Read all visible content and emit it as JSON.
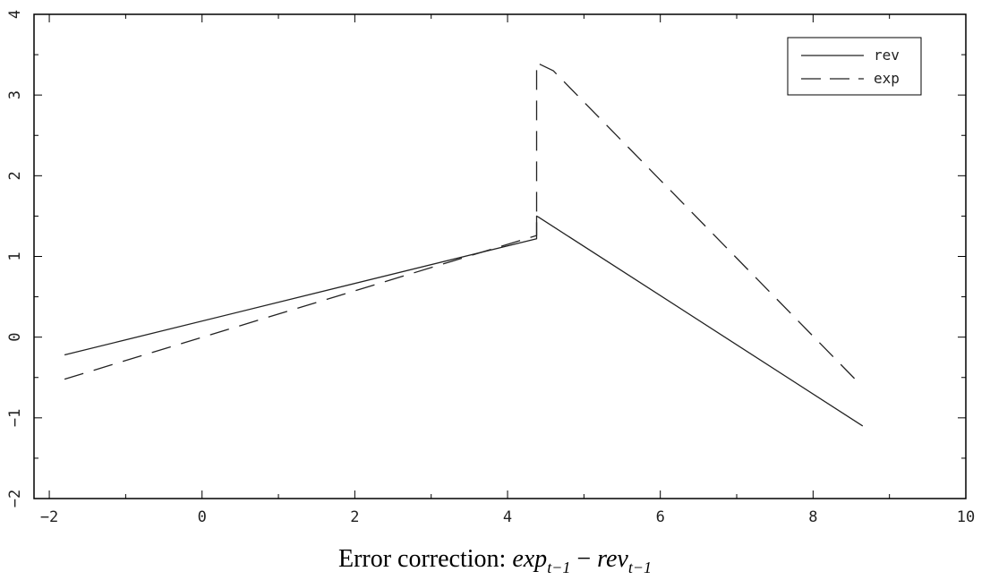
{
  "chart_data": {
    "type": "line",
    "title": "",
    "xlabel": {
      "prefix": "Error correction: ",
      "term1": "exp",
      "sub1": "t−1",
      "operator": " − ",
      "term2": "rev",
      "sub2": "t−1"
    },
    "ylabel": "",
    "xlim": [
      -2.2,
      10
    ],
    "ylim": [
      -2,
      4
    ],
    "x_ticks": [
      -2,
      0,
      2,
      4,
      6,
      8,
      10
    ],
    "x_tick_labels": [
      "−2",
      "0",
      "2",
      "4",
      "6",
      "8",
      "10"
    ],
    "y_ticks": [
      -2,
      -1,
      0,
      1,
      2,
      3,
      4
    ],
    "y_tick_labels": [
      "−2",
      "−1",
      "0",
      "1",
      "2",
      "3",
      "4"
    ],
    "grid": false,
    "legend_position": "top-right",
    "series": [
      {
        "name": "rev",
        "style": "solid",
        "x": [
          -1.8,
          4.38,
          4.38,
          4.4,
          8.65
        ],
        "y": [
          -0.22,
          1.22,
          1.5,
          1.49,
          -1.1
        ]
      },
      {
        "name": "exp",
        "style": "dashed",
        "x": [
          -1.8,
          4.38,
          4.38,
          4.6,
          8.55
        ],
        "y": [
          -0.52,
          1.26,
          3.4,
          3.3,
          -0.52
        ]
      }
    ],
    "colors": {
      "line": "#222222",
      "frame": "#000000"
    }
  }
}
